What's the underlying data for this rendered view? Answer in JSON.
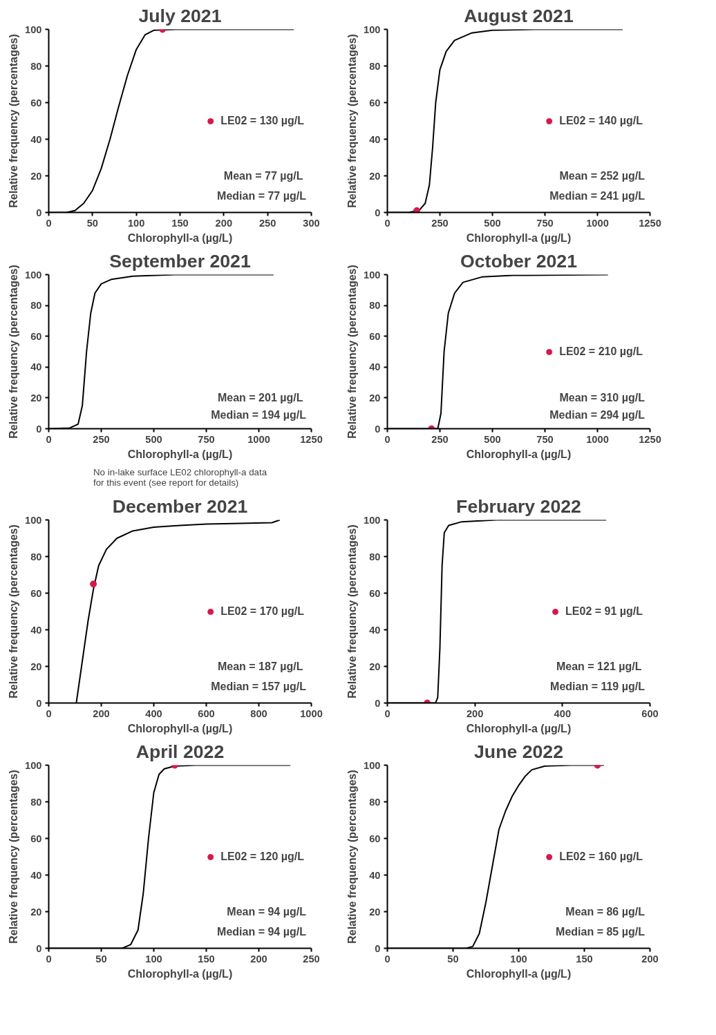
{
  "chart_data": [
    {
      "type": "line",
      "title": "July 2021",
      "xlabel": "Chlorophyll-a (µg/L)",
      "ylabel": "Relative frequency (percentages)",
      "xlim": [
        0,
        300
      ],
      "xticks": [
        0,
        50,
        100,
        150,
        200,
        250,
        300
      ],
      "ylim": [
        0,
        100
      ],
      "yticks": [
        0,
        20,
        40,
        60,
        80,
        100
      ],
      "grid": false,
      "legend": "right",
      "annotations": [
        "Mean =  77 µg/L",
        "Median = 77 µg/L"
      ],
      "series": [
        {
          "color": "#000000",
          "line_style": "solid",
          "x": [
            0,
            20,
            30,
            40,
            50,
            60,
            70,
            80,
            90,
            100,
            110,
            120,
            145,
            280
          ],
          "values": [
            0,
            0,
            1,
            5,
            12,
            24,
            40,
            58,
            75,
            89,
            97,
            99.5,
            100,
            100
          ]
        },
        {
          "type": "scatter",
          "name": "LE02 = 130 µg/L",
          "color": "#d6184a",
          "marker": "circle",
          "x": [
            130
          ],
          "values": [
            100
          ]
        }
      ]
    },
    {
      "type": "line",
      "title": "August 2021",
      "xlabel": "Chlorophyll-a (µg/L)",
      "ylabel": "Relative frequency (percentages)",
      "xlim": [
        0,
        1250
      ],
      "xticks": [
        0,
        250,
        500,
        750,
        1000,
        1250
      ],
      "ylim": [
        0,
        100
      ],
      "yticks": [
        0,
        20,
        40,
        60,
        80,
        100
      ],
      "grid": false,
      "legend": "right",
      "annotations": [
        "Mean = 252 µg/L",
        "Median = 241 µg/L"
      ],
      "series": [
        {
          "color": "#000000",
          "line_style": "solid",
          "x": [
            0,
            100,
            150,
            180,
            200,
            215,
            230,
            250,
            280,
            320,
            400,
            500,
            700,
            1120
          ],
          "values": [
            0,
            0,
            1,
            5,
            15,
            35,
            60,
            78,
            88,
            94,
            98,
            99.5,
            100,
            100
          ]
        },
        {
          "type": "scatter",
          "name": "LE02 = 140 µg/L",
          "color": "#d6184a",
          "marker": "circle",
          "x": [
            140
          ],
          "values": [
            1
          ]
        }
      ]
    },
    {
      "type": "line",
      "title": "September 2021",
      "xlabel": "Chlorophyll-a (µg/L)",
      "ylabel": "Relative frequency (percentages)",
      "xlim": [
        0,
        1250
      ],
      "xticks": [
        0,
        250,
        500,
        750,
        1000,
        1250
      ],
      "ylim": [
        0,
        100
      ],
      "yticks": [
        0,
        20,
        40,
        60,
        80,
        100
      ],
      "grid": false,
      "annotations": [
        "Mean =  201 µg/L",
        "Median = 194 µg/L",
        "No in-lake surface LE02 chlorophyll-a data for this event (see report for details)"
      ],
      "series": [
        {
          "color": "#000000",
          "line_style": "solid",
          "x": [
            0,
            100,
            140,
            160,
            180,
            200,
            220,
            250,
            300,
            400,
            600,
            1070
          ],
          "values": [
            0,
            0.5,
            3,
            15,
            50,
            75,
            88,
            94,
            97,
            99,
            100,
            100
          ]
        }
      ]
    },
    {
      "type": "line",
      "title": "October 2021",
      "xlabel": "Chlorophyll-a (µg/L)",
      "ylabel": "Relative frequency (percentages)",
      "xlim": [
        0,
        1250
      ],
      "xticks": [
        0,
        250,
        500,
        750,
        1000,
        1250
      ],
      "ylim": [
        0,
        100
      ],
      "yticks": [
        0,
        20,
        40,
        60,
        80,
        100
      ],
      "grid": false,
      "legend": "right",
      "annotations": [
        "Mean = 310 µg/L",
        "Median = 294 µg/L"
      ],
      "series": [
        {
          "color": "#000000",
          "line_style": "solid",
          "x": [
            0,
            240,
            255,
            270,
            290,
            320,
            360,
            450,
            600,
            1050
          ],
          "values": [
            0,
            0,
            10,
            50,
            75,
            88,
            95,
            98.5,
            99.5,
            100
          ]
        },
        {
          "type": "scatter",
          "name": "LE02 = 210 µg/L",
          "color": "#d6184a",
          "marker": "circle",
          "x": [
            210
          ],
          "values": [
            0
          ]
        }
      ]
    },
    {
      "type": "line",
      "title": "December 2021",
      "xlabel": "Chlorophyll-a (µg/L)",
      "ylabel": "Relative frequency (percentages)",
      "xlim": [
        0,
        1000
      ],
      "xticks": [
        0,
        200,
        400,
        600,
        800,
        1000
      ],
      "ylim": [
        0,
        100
      ],
      "yticks": [
        0,
        20,
        40,
        60,
        80,
        100
      ],
      "grid": false,
      "legend": "right",
      "annotations": [
        "Mean =  187 µg/L",
        "Median = 157 µg/L"
      ],
      "series": [
        {
          "color": "#000000",
          "line_style": "solid",
          "x": [
            105,
            130,
            150,
            170,
            190,
            220,
            260,
            320,
            400,
            500,
            600,
            700,
            850,
            880
          ],
          "values": [
            0,
            25,
            45,
            62,
            75,
            84,
            90,
            94,
            96,
            97,
            97.7,
            98,
            98.5,
            100
          ]
        },
        {
          "type": "scatter",
          "name": "LE02 = 170 µg/L",
          "color": "#d6184a",
          "marker": "circle",
          "x": [
            170
          ],
          "values": [
            65
          ]
        }
      ]
    },
    {
      "type": "line",
      "title": "February 2022",
      "xlabel": "Chlorophyll-a (µg/L)",
      "ylabel": "Relative frequency (percentages)",
      "xlim": [
        0,
        600
      ],
      "xticks": [
        0,
        200,
        400,
        600
      ],
      "ylim": [
        0,
        100
      ],
      "yticks": [
        0,
        20,
        40,
        60,
        80,
        100
      ],
      "grid": false,
      "legend": "right",
      "annotations": [
        "Mean =  121 µg/L",
        "Median = 119 µg/L"
      ],
      "series": [
        {
          "color": "#000000",
          "line_style": "solid",
          "x": [
            0,
            110,
            115,
            120,
            125,
            130,
            140,
            170,
            250,
            500
          ],
          "values": [
            0,
            0,
            3,
            30,
            75,
            93,
            97,
            99,
            100,
            100
          ]
        },
        {
          "type": "scatter",
          "name": "LE02 = 91 µg/L",
          "color": "#d6184a",
          "marker": "circle",
          "x": [
            91
          ],
          "values": [
            0
          ]
        }
      ]
    },
    {
      "type": "line",
      "title": "April 2022",
      "xlabel": "Chlorophyll-a (µg/L)",
      "ylabel": "Relative frequency (percentages)",
      "xlim": [
        0,
        250
      ],
      "xticks": [
        0,
        50,
        100,
        150,
        200,
        250
      ],
      "ylim": [
        0,
        100
      ],
      "yticks": [
        0,
        20,
        40,
        60,
        80,
        100
      ],
      "grid": false,
      "legend": "right",
      "annotations": [
        "Mean = 94 µg/L",
        "Median = 94 µg/L"
      ],
      "series": [
        {
          "color": "#000000",
          "line_style": "solid",
          "x": [
            0,
            70,
            78,
            85,
            90,
            95,
            100,
            105,
            110,
            120,
            140,
            230
          ],
          "values": [
            0,
            0,
            2,
            10,
            30,
            60,
            85,
            95,
            98,
            99.5,
            100,
            100
          ]
        },
        {
          "type": "scatter",
          "name": "LE02 = 120 µg/L",
          "color": "#d6184a",
          "marker": "circle",
          "x": [
            120
          ],
          "values": [
            100
          ]
        }
      ]
    },
    {
      "type": "line",
      "title": "June 2022",
      "xlabel": "Chlorophyll-a (µg/L)",
      "ylabel": "Relative frequency (percentages)",
      "xlim": [
        0,
        200
      ],
      "xticks": [
        0,
        50,
        100,
        150,
        200
      ],
      "ylim": [
        0,
        100
      ],
      "yticks": [
        0,
        20,
        40,
        60,
        80,
        100
      ],
      "grid": false,
      "legend": "right",
      "annotations": [
        "Mean = 86 µg/L",
        "Median = 85 µg/L"
      ],
      "series": [
        {
          "color": "#000000",
          "line_style": "solid",
          "x": [
            0,
            60,
            65,
            70,
            75,
            80,
            85,
            90,
            95,
            100,
            105,
            110,
            120,
            140,
            165
          ],
          "values": [
            0,
            0,
            1,
            8,
            25,
            45,
            65,
            75,
            83,
            89,
            94,
            97.5,
            99.5,
            100,
            100
          ]
        },
        {
          "type": "scatter",
          "name": "LE02 = 160 µg/L",
          "color": "#d6184a",
          "marker": "circle",
          "x": [
            160
          ],
          "values": [
            100
          ]
        }
      ]
    }
  ]
}
